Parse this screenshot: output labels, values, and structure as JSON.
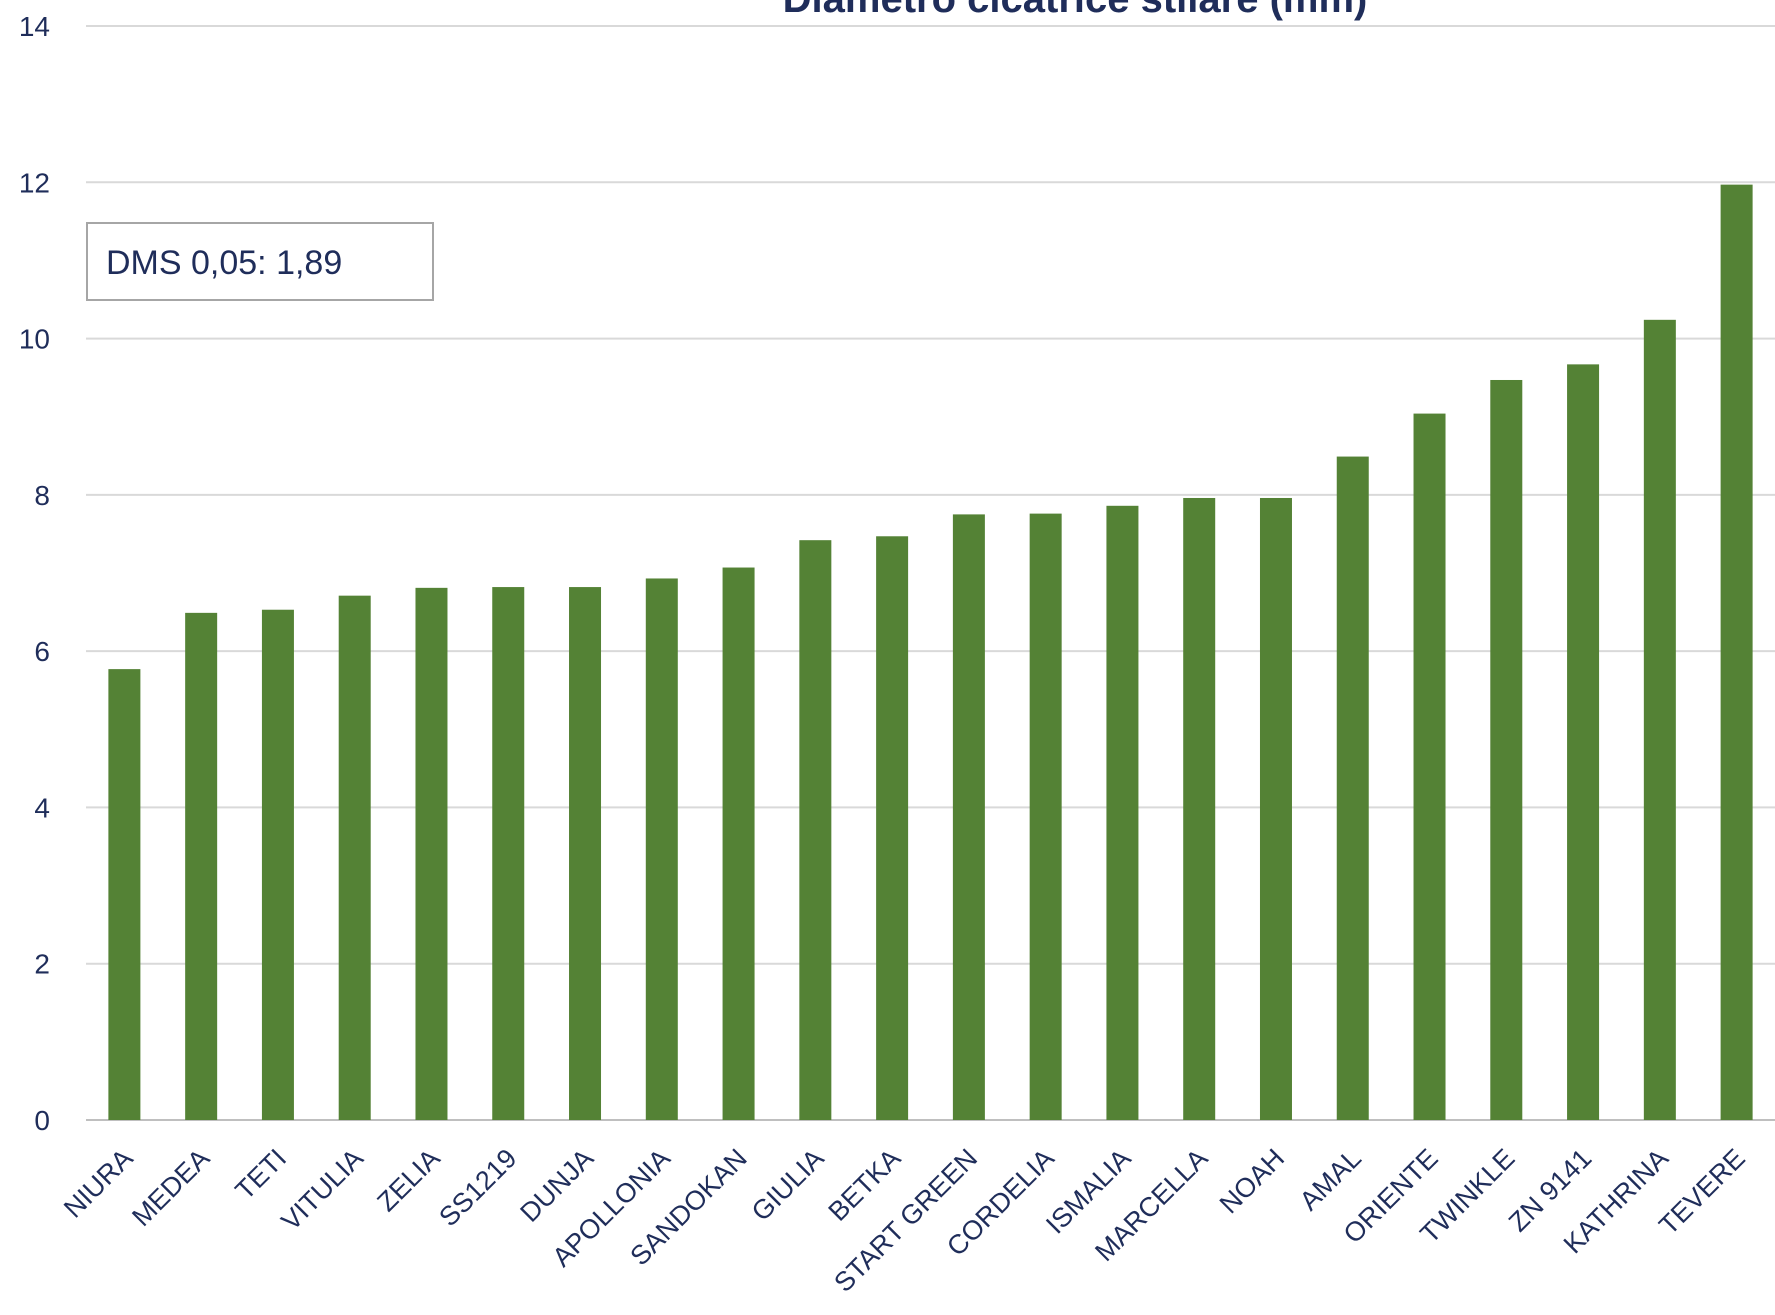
{
  "chart_data": {
    "type": "bar",
    "title": "Diametro cicatrice stilare (mm)",
    "xlabel": "",
    "ylabel": "",
    "ylim": [
      0,
      14
    ],
    "yticks": [
      0,
      2,
      4,
      6,
      8,
      10,
      12,
      14
    ],
    "grid": true,
    "categories": [
      "NIURA",
      "MEDEA",
      "TETI",
      "VITULIA",
      "ZELIA",
      "SS1219",
      "DUNJA",
      "APOLLONIA",
      "SANDOKAN",
      "GIULIA",
      "BETKA",
      "START GREEN",
      "CORDELIA",
      "ISMALIA",
      "MARCELLA",
      "NOAH",
      "AMAL",
      "ORIENTE",
      "TWINKLE",
      "ZN 9141",
      "KATHRINA",
      "TEVERE"
    ],
    "values": [
      5.77,
      6.49,
      6.53,
      6.71,
      6.81,
      6.82,
      6.82,
      6.93,
      7.07,
      7.42,
      7.47,
      7.75,
      7.76,
      7.86,
      7.96,
      7.96,
      8.49,
      9.04,
      9.47,
      9.67,
      10.24,
      11.97
    ],
    "annotation": "DMS 0,05: 1,89",
    "colors": {
      "bar": "#548235",
      "grid": "#d9d9d9",
      "text": "#1f2d5a"
    }
  }
}
